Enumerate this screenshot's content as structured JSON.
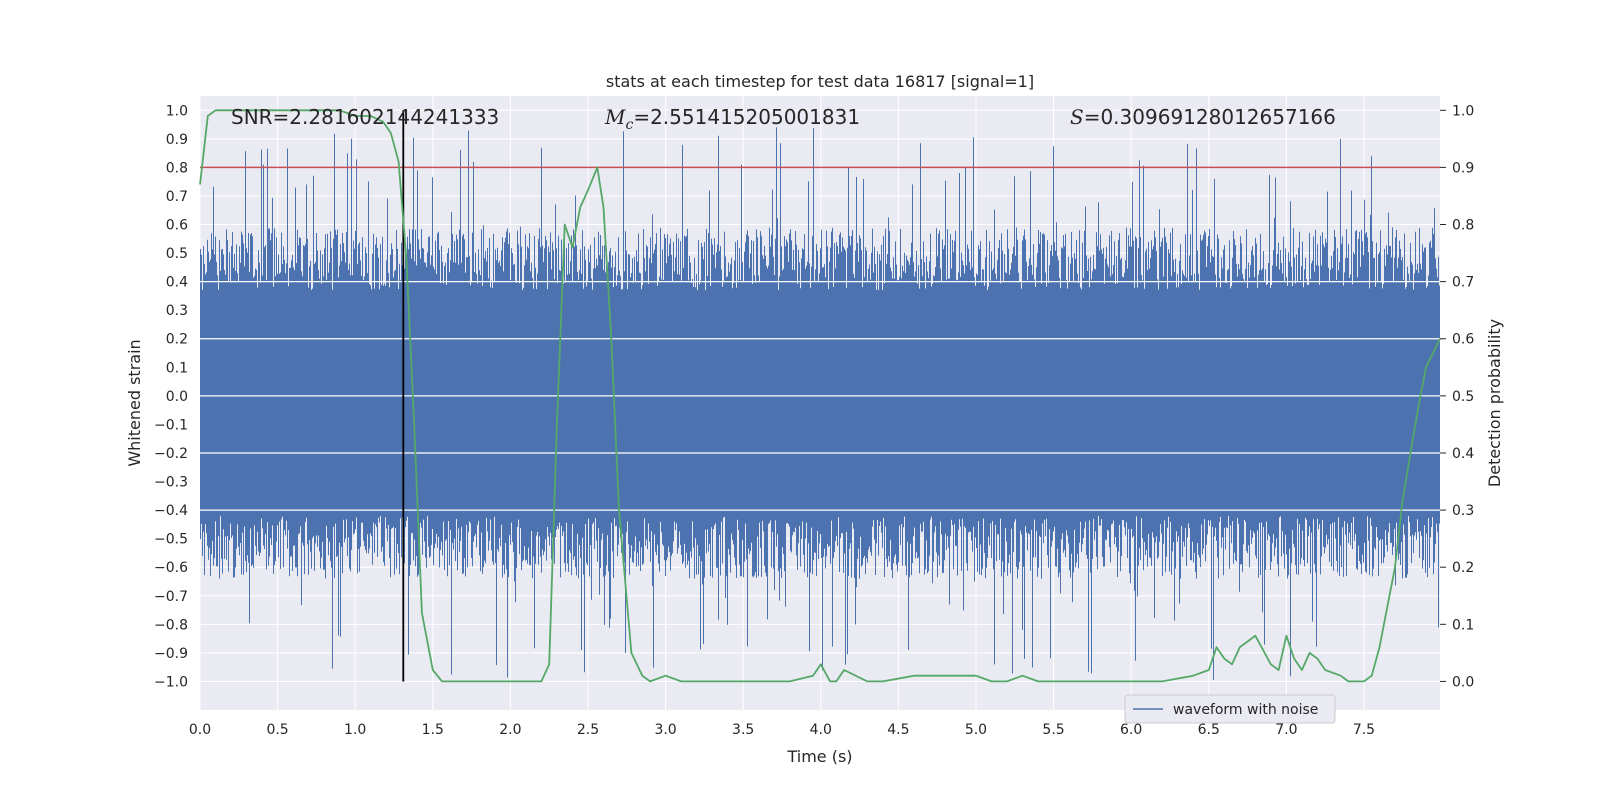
{
  "chart_data": {
    "type": "line",
    "title": "stats at each timestep for test data 16817 [signal=1]",
    "xlabel": "Time (s)",
    "ylabel_left": "Whitened strain",
    "ylabel_right": "Detection probability",
    "xlim": [
      0.0,
      7.99
    ],
    "ylim_left": [
      -1.1,
      1.05
    ],
    "ylim_right": [
      -0.05,
      1.025
    ],
    "xticks": [
      "0.0",
      "0.5",
      "1.0",
      "1.5",
      "2.0",
      "2.5",
      "3.0",
      "3.5",
      "4.0",
      "4.5",
      "5.0",
      "5.5",
      "6.0",
      "6.5",
      "7.0",
      "7.5"
    ],
    "yticks_left": [
      "1.0",
      "0.9",
      "0.8",
      "0.7",
      "0.6",
      "0.5",
      "0.4",
      "0.3",
      "0.2",
      "0.1",
      "0.0",
      "-0.1",
      "-0.2",
      "-0.3",
      "-0.4",
      "-0.5",
      "-0.6",
      "-0.7",
      "-0.8",
      "-0.9",
      "-1.0"
    ],
    "yticks_right": [
      "1.0",
      "0.9",
      "0.8",
      "0.7",
      "0.6",
      "0.5",
      "0.4",
      "0.3",
      "0.2",
      "0.1",
      "0.0"
    ],
    "annotations": {
      "snr": "SNR=2.281602144241333",
      "mc_symbol": "M",
      "mc_subscript": "c",
      "mc_value": "=2.551415205001831",
      "s_symbol": "S",
      "s_value": "=0.30969128012657166"
    },
    "threshold_probability": 0.9,
    "marker_time": 1.31,
    "series": [
      {
        "name": "waveform with noise",
        "color": "#4c72b0",
        "axis": "left",
        "kind": "noise envelope",
        "core_range": [
          -0.42,
          0.37
        ],
        "peak_range": [
          -1.0,
          0.95
        ]
      },
      {
        "name": "detection probability",
        "color": "#55a868",
        "axis": "right",
        "x": [
          0.0,
          0.05,
          0.1,
          0.2,
          0.3,
          0.5,
          0.7,
          0.9,
          1.0,
          1.1,
          1.18,
          1.23,
          1.28,
          1.33,
          1.38,
          1.43,
          1.5,
          1.56,
          1.7,
          1.9,
          2.1,
          2.2,
          2.25,
          2.3,
          2.35,
          2.4,
          2.45,
          2.5,
          2.56,
          2.6,
          2.65,
          2.7,
          2.78,
          2.85,
          2.9,
          3.0,
          3.1,
          3.2,
          3.5,
          3.8,
          3.95,
          4.0,
          4.06,
          4.1,
          4.15,
          4.3,
          4.35,
          4.4,
          4.6,
          4.8,
          5.0,
          5.1,
          5.2,
          5.3,
          5.4,
          5.6,
          5.8,
          6.0,
          6.2,
          6.4,
          6.5,
          6.55,
          6.6,
          6.65,
          6.7,
          6.75,
          6.8,
          6.9,
          6.95,
          7.0,
          7.05,
          7.1,
          7.15,
          7.2,
          7.25,
          7.35,
          7.4,
          7.5,
          7.55,
          7.6,
          7.7,
          7.75,
          7.8,
          7.85,
          7.9,
          7.99
        ],
        "y": [
          0.87,
          0.99,
          1.0,
          1.0,
          1.0,
          1.0,
          1.0,
          1.0,
          0.99,
          0.99,
          0.98,
          0.96,
          0.91,
          0.74,
          0.45,
          0.12,
          0.02,
          0.0,
          0.0,
          0.0,
          0.0,
          0.0,
          0.03,
          0.45,
          0.8,
          0.76,
          0.83,
          0.86,
          0.9,
          0.83,
          0.6,
          0.3,
          0.05,
          0.01,
          0.0,
          0.01,
          0.0,
          0.0,
          0.0,
          0.0,
          0.01,
          0.03,
          0.0,
          0.0,
          0.02,
          0.0,
          0.0,
          0.0,
          0.01,
          0.01,
          0.01,
          0.0,
          0.0,
          0.01,
          0.0,
          0.0,
          0.0,
          0.0,
          0.0,
          0.01,
          0.02,
          0.06,
          0.04,
          0.03,
          0.06,
          0.07,
          0.08,
          0.03,
          0.02,
          0.08,
          0.04,
          0.02,
          0.05,
          0.04,
          0.02,
          0.01,
          0.0,
          0.0,
          0.01,
          0.06,
          0.2,
          0.32,
          0.4,
          0.48,
          0.55,
          0.6
        ]
      }
    ],
    "legend": {
      "entries": [
        "waveform with noise"
      ],
      "location": "lower right"
    }
  }
}
